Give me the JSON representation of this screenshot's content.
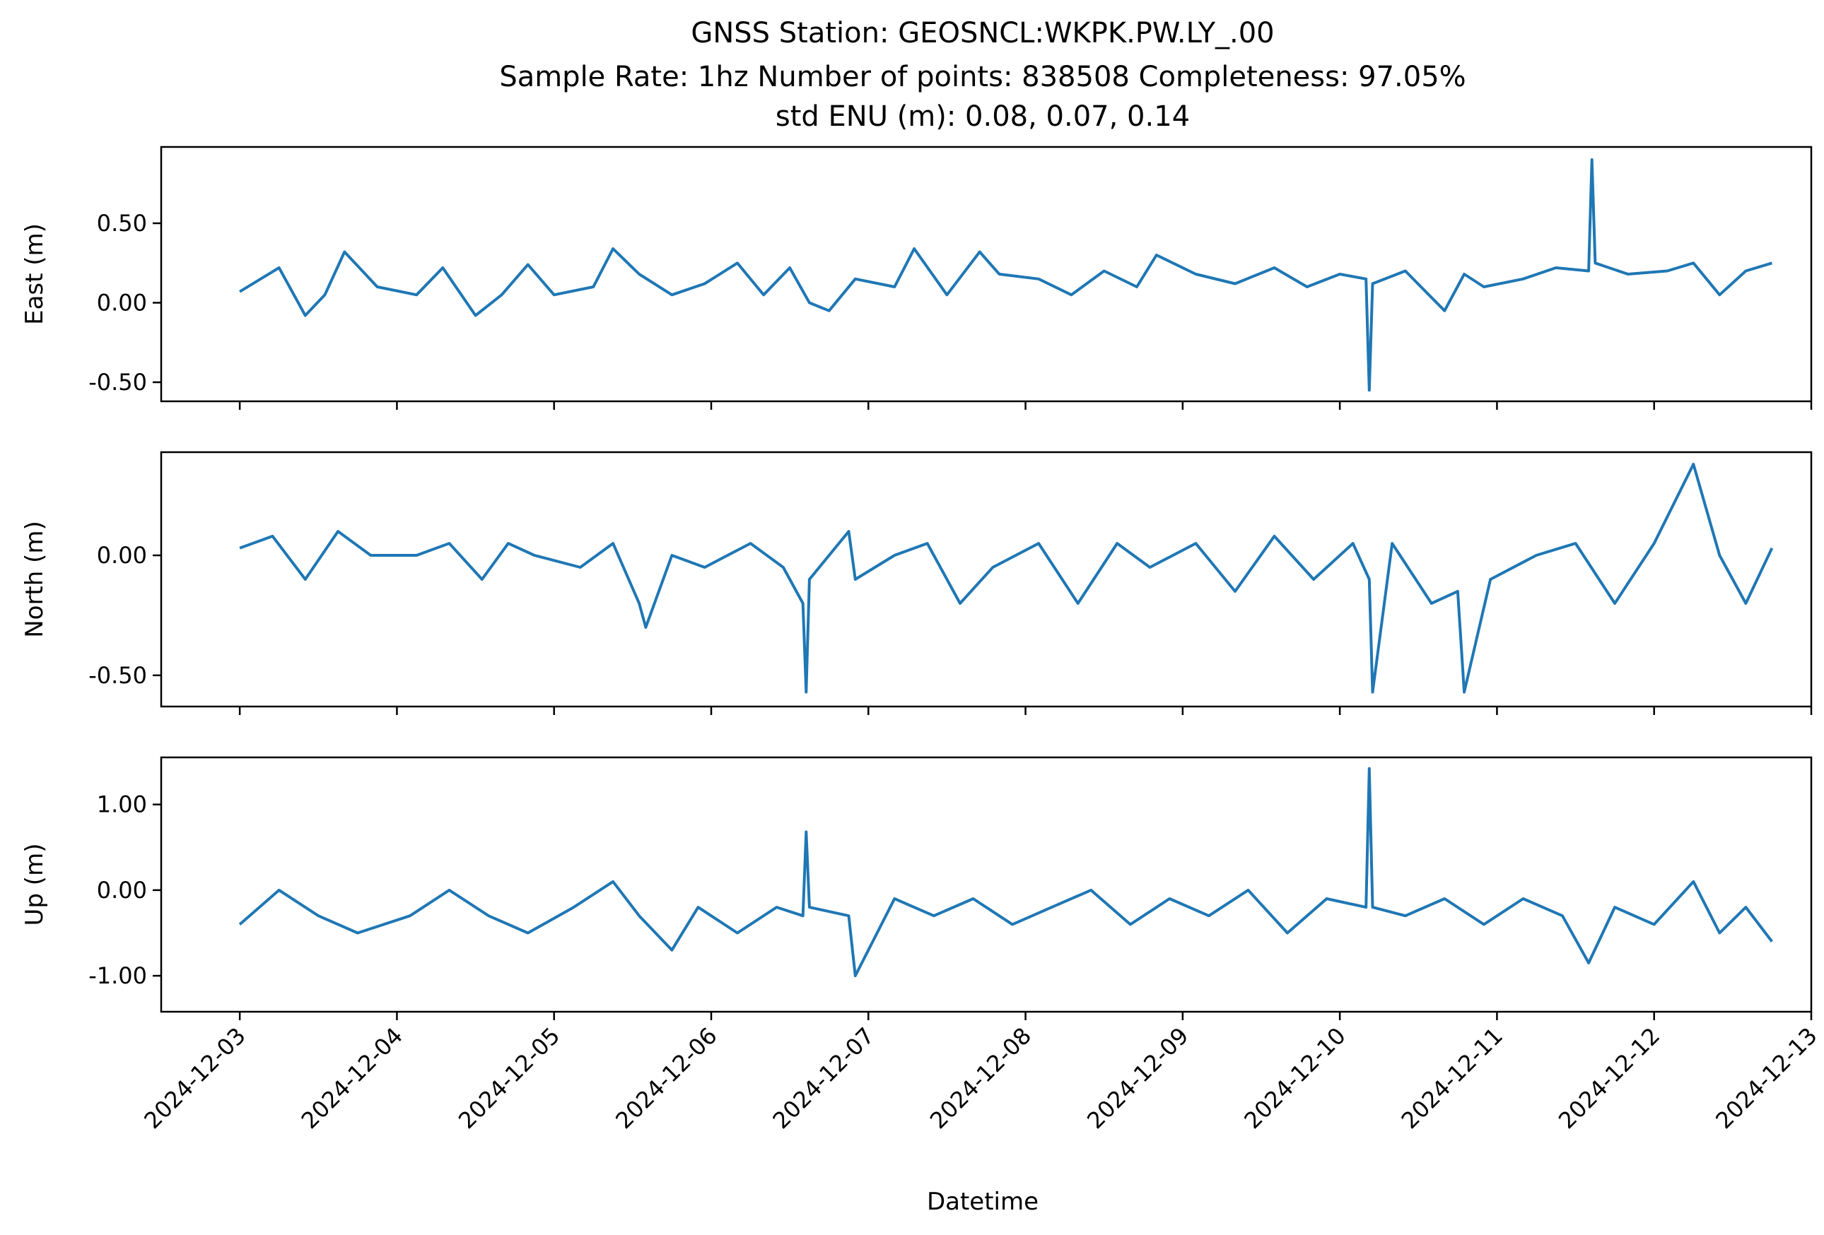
{
  "title": {
    "line1": "GNSS Station: GEOSNCL:WKPK.PW.LY_.00",
    "line2": "Sample Rate: 1hz   Number of points: 838508    Completeness:  97.05%",
    "line3": "std ENU (m):  0.08, 0.07, 0.14"
  },
  "xlabel": "Datetime",
  "x_ticks": [
    "2024-12-03",
    "2024-12-04",
    "2024-12-05",
    "2024-12-06",
    "2024-12-07",
    "2024-12-08",
    "2024-12-09",
    "2024-12-10",
    "2024-12-11",
    "2024-12-12",
    "2024-12-13"
  ],
  "colors": {
    "series": "#1f77b4"
  },
  "chart_data": [
    {
      "type": "line",
      "ylabel": "East (m)",
      "xlim": [
        "2024-12-02T12:00",
        "2024-12-13T00:00"
      ],
      "ylim": [
        -0.62,
        0.98
      ],
      "y_ticks": [
        0.5,
        0.0,
        -0.5
      ],
      "y_tick_labels": [
        "0.50",
        "0.00",
        "-0.50"
      ],
      "grid": false,
      "series": [
        {
          "x": [
            "2024-12-03T00:00",
            "2024-12-03T06:00",
            "2024-12-03T10:00",
            "2024-12-03T13:00",
            "2024-12-03T16:00",
            "2024-12-03T21:00",
            "2024-12-04T03:00",
            "2024-12-04T07:00",
            "2024-12-04T12:00",
            "2024-12-04T16:00",
            "2024-12-04T20:00",
            "2024-12-05T00:00",
            "2024-12-05T06:00",
            "2024-12-05T09:00",
            "2024-12-05T13:00",
            "2024-12-05T18:00",
            "2024-12-05T23:00",
            "2024-12-06T04:00",
            "2024-12-06T08:00",
            "2024-12-06T12:00",
            "2024-12-06T15:00",
            "2024-12-06T18:00",
            "2024-12-06T22:00",
            "2024-12-07T04:00",
            "2024-12-07T07:00",
            "2024-12-07T12:00",
            "2024-12-07T17:00",
            "2024-12-07T20:00",
            "2024-12-08T02:00",
            "2024-12-08T07:00",
            "2024-12-08T12:00",
            "2024-12-08T17:00",
            "2024-12-08T20:00",
            "2024-12-09T02:00",
            "2024-12-09T08:00",
            "2024-12-09T14:00",
            "2024-12-09T19:00",
            "2024-12-10T00:00",
            "2024-12-10T04:00",
            "2024-12-10T04:30",
            "2024-12-10T05:00",
            "2024-12-10T10:00",
            "2024-12-10T16:00",
            "2024-12-10T19:00",
            "2024-12-10T22:00",
            "2024-12-11T04:00",
            "2024-12-11T09:00",
            "2024-12-11T14:00",
            "2024-12-11T14:30",
            "2024-12-11T15:00",
            "2024-12-11T20:00",
            "2024-12-12T02:00",
            "2024-12-12T06:00",
            "2024-12-12T10:00",
            "2024-12-12T14:00",
            "2024-12-12T18:00"
          ],
          "y": [
            0.07,
            0.22,
            -0.08,
            0.05,
            0.32,
            0.1,
            0.05,
            0.22,
            -0.08,
            0.05,
            0.24,
            0.05,
            0.1,
            0.34,
            0.18,
            0.05,
            0.12,
            0.25,
            0.05,
            0.22,
            0.0,
            -0.05,
            0.15,
            0.1,
            0.34,
            0.05,
            0.32,
            0.18,
            0.15,
            0.05,
            0.2,
            0.1,
            0.3,
            0.18,
            0.12,
            0.22,
            0.1,
            0.18,
            0.15,
            -0.55,
            0.12,
            0.2,
            -0.05,
            0.18,
            0.1,
            0.15,
            0.22,
            0.2,
            0.9,
            0.25,
            0.18,
            0.2,
            0.25,
            0.05,
            0.2,
            0.25
          ]
        }
      ]
    },
    {
      "type": "line",
      "ylabel": "North (m)",
      "xlim": [
        "2024-12-02T12:00",
        "2024-12-13T00:00"
      ],
      "ylim": [
        -0.63,
        0.43
      ],
      "y_ticks": [
        0.0,
        -0.5
      ],
      "y_tick_labels": [
        "0.00",
        "-0.50"
      ],
      "grid": false,
      "series": [
        {
          "x": [
            "2024-12-03T00:00",
            "2024-12-03T05:00",
            "2024-12-03T10:00",
            "2024-12-03T15:00",
            "2024-12-03T20:00",
            "2024-12-04T03:00",
            "2024-12-04T08:00",
            "2024-12-04T13:00",
            "2024-12-04T17:00",
            "2024-12-04T21:00",
            "2024-12-05T04:00",
            "2024-12-05T09:00",
            "2024-12-05T13:00",
            "2024-12-05T14:00",
            "2024-12-05T18:00",
            "2024-12-05T23:00",
            "2024-12-06T06:00",
            "2024-12-06T11:00",
            "2024-12-06T14:00",
            "2024-12-06T14:30",
            "2024-12-06T15:00",
            "2024-12-06T21:00",
            "2024-12-06T22:00",
            "2024-12-07T04:00",
            "2024-12-07T09:00",
            "2024-12-07T14:00",
            "2024-12-07T19:00",
            "2024-12-08T02:00",
            "2024-12-08T08:00",
            "2024-12-08T14:00",
            "2024-12-08T19:00",
            "2024-12-09T02:00",
            "2024-12-09T08:00",
            "2024-12-09T14:00",
            "2024-12-09T20:00",
            "2024-12-10T02:00",
            "2024-12-10T04:30",
            "2024-12-10T05:00",
            "2024-12-10T08:00",
            "2024-12-10T14:00",
            "2024-12-10T18:00",
            "2024-12-10T19:00",
            "2024-12-10T23:00",
            "2024-12-11T06:00",
            "2024-12-11T12:00",
            "2024-12-11T18:00",
            "2024-12-12T00:00",
            "2024-12-12T06:00",
            "2024-12-12T10:00",
            "2024-12-12T14:00",
            "2024-12-12T18:00"
          ],
          "y": [
            0.03,
            0.08,
            -0.1,
            0.1,
            0.0,
            0.0,
            0.05,
            -0.1,
            0.05,
            0.0,
            -0.05,
            0.05,
            -0.2,
            -0.3,
            0.0,
            -0.05,
            0.05,
            -0.05,
            -0.2,
            -0.57,
            -0.1,
            0.1,
            -0.1,
            0.0,
            0.05,
            -0.2,
            -0.05,
            0.05,
            -0.2,
            0.05,
            -0.05,
            0.05,
            -0.15,
            0.08,
            -0.1,
            0.05,
            -0.1,
            -0.57,
            0.05,
            -0.2,
            -0.15,
            -0.57,
            -0.1,
            0.0,
            0.05,
            -0.2,
            0.05,
            0.38,
            0.0,
            -0.2,
            0.03
          ]
        }
      ]
    },
    {
      "type": "line",
      "ylabel": "Up (m)",
      "xlim": [
        "2024-12-02T12:00",
        "2024-12-13T00:00"
      ],
      "ylim": [
        -1.42,
        1.55
      ],
      "y_ticks": [
        1.0,
        0.0,
        -1.0
      ],
      "y_tick_labels": [
        "1.00",
        "0.00",
        "-1.00"
      ],
      "grid": false,
      "series": [
        {
          "x": [
            "2024-12-03T00:00",
            "2024-12-03T06:00",
            "2024-12-03T12:00",
            "2024-12-03T18:00",
            "2024-12-04T02:00",
            "2024-12-04T08:00",
            "2024-12-04T14:00",
            "2024-12-04T20:00",
            "2024-12-05T03:00",
            "2024-12-05T09:00",
            "2024-12-05T13:00",
            "2024-12-05T18:00",
            "2024-12-05T22:00",
            "2024-12-06T04:00",
            "2024-12-06T10:00",
            "2024-12-06T14:00",
            "2024-12-06T14:30",
            "2024-12-06T15:00",
            "2024-12-06T21:00",
            "2024-12-06T22:00",
            "2024-12-07T04:00",
            "2024-12-07T10:00",
            "2024-12-07T16:00",
            "2024-12-07T22:00",
            "2024-12-08T04:00",
            "2024-12-08T10:00",
            "2024-12-08T16:00",
            "2024-12-08T22:00",
            "2024-12-09T04:00",
            "2024-12-09T10:00",
            "2024-12-09T16:00",
            "2024-12-09T22:00",
            "2024-12-10T04:00",
            "2024-12-10T04:30",
            "2024-12-10T05:00",
            "2024-12-10T10:00",
            "2024-12-10T16:00",
            "2024-12-10T22:00",
            "2024-12-11T04:00",
            "2024-12-11T10:00",
            "2024-12-11T14:00",
            "2024-12-11T18:00",
            "2024-12-12T00:00",
            "2024-12-12T06:00",
            "2024-12-12T10:00",
            "2024-12-12T14:00",
            "2024-12-12T18:00"
          ],
          "y": [
            -0.4,
            0.0,
            -0.3,
            -0.5,
            -0.3,
            0.0,
            -0.3,
            -0.5,
            -0.2,
            0.1,
            -0.3,
            -0.7,
            -0.2,
            -0.5,
            -0.2,
            -0.3,
            0.68,
            -0.2,
            -0.3,
            -1.0,
            -0.1,
            -0.3,
            -0.1,
            -0.4,
            -0.2,
            0.0,
            -0.4,
            -0.1,
            -0.3,
            0.0,
            -0.5,
            -0.1,
            -0.2,
            1.42,
            -0.2,
            -0.3,
            -0.1,
            -0.4,
            -0.1,
            -0.3,
            -0.85,
            -0.2,
            -0.4,
            0.1,
            -0.5,
            -0.2,
            -0.6
          ]
        }
      ]
    }
  ]
}
